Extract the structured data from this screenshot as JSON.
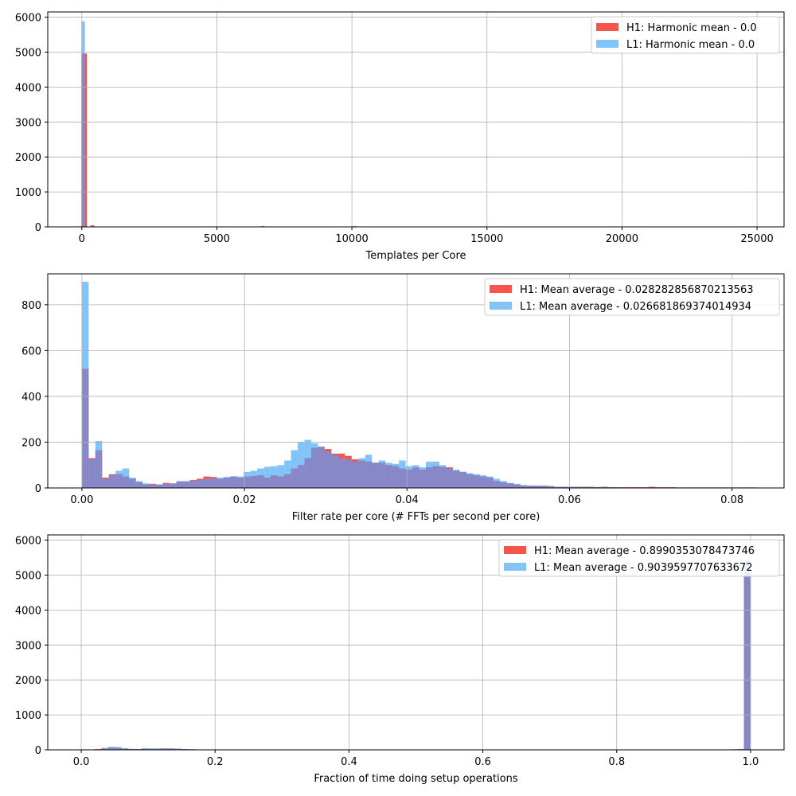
{
  "colors": {
    "h1": "#f44336",
    "l1": "#64b5f6",
    "overlap": "#8888c8",
    "grid": "#b0b0b0"
  },
  "chart_data": [
    {
      "type": "histogram",
      "xlabel": "Templates per Core",
      "xlim": [
        -1260,
        26000
      ],
      "ylim": [
        0,
        6150
      ],
      "xticks": [
        0,
        5000,
        10000,
        15000,
        20000,
        25000
      ],
      "xtick_labels": [
        "0",
        "5000",
        "10000",
        "15000",
        "20000",
        "25000"
      ],
      "yticks": [
        0,
        1000,
        2000,
        3000,
        4000,
        5000,
        6000
      ],
      "ytick_labels": [
        "0",
        "1000",
        "2000",
        "3000",
        "4000",
        "5000",
        "6000"
      ],
      "grid": true,
      "legend_position": "upper-right",
      "series": [
        {
          "name": "H1: Harmonic mean  - 0.0",
          "bars": [
            [
              50,
              4960
            ],
            [
              125,
              4960
            ],
            [
              400,
              50
            ],
            [
              6700,
              20
            ],
            [
              7000,
              10
            ],
            [
              7900,
              10
            ],
            [
              8300,
              8
            ],
            [
              9000,
              10
            ],
            [
              9600,
              8
            ],
            [
              10100,
              20
            ],
            [
              11000,
              10
            ]
          ],
          "bin_width": 130
        },
        {
          "name": "L1: Harmonic mean  - 0.0",
          "bars": [
            [
              50,
              5880
            ],
            [
              380,
              40
            ],
            [
              8700,
              8
            ],
            [
              9500,
              8
            ]
          ],
          "bin_width": 130
        }
      ]
    },
    {
      "type": "histogram",
      "xlabel": "Filter rate per core (# FFTs per second per core)",
      "xlim": [
        -0.0042,
        0.0864
      ],
      "ylim": [
        0,
        935
      ],
      "xticks": [
        0.0,
        0.02,
        0.04,
        0.06,
        0.08
      ],
      "xtick_labels": [
        "0.00",
        "0.02",
        "0.04",
        "0.06",
        "0.08"
      ],
      "yticks": [
        0,
        200,
        400,
        600,
        800
      ],
      "ytick_labels": [
        "0",
        "200",
        "400",
        "600",
        "800"
      ],
      "grid": true,
      "legend_position": "upper-right",
      "bin_width": 0.00083,
      "bin_start": 0.0,
      "series": [
        {
          "name": "H1: Mean average - 0.028282856870213563",
          "values": [
            520,
            130,
            165,
            45,
            60,
            60,
            50,
            40,
            25,
            15,
            18,
            15,
            22,
            20,
            28,
            28,
            35,
            40,
            50,
            48,
            40,
            45,
            48,
            45,
            50,
            52,
            55,
            45,
            55,
            50,
            60,
            85,
            100,
            130,
            175,
            180,
            170,
            150,
            150,
            140,
            125,
            120,
            115,
            110,
            110,
            100,
            95,
            85,
            80,
            90,
            80,
            90,
            95,
            92,
            90,
            75,
            70,
            60,
            55,
            50,
            45,
            30,
            25,
            20,
            15,
            12,
            10,
            10,
            10,
            8,
            5,
            5,
            5,
            5,
            5,
            5,
            3,
            5,
            3,
            3,
            3,
            3,
            3,
            3,
            5,
            3,
            3,
            3,
            2,
            2,
            2,
            2,
            2,
            2,
            2,
            2,
            2,
            2,
            2,
            2
          ],
          "color_key": "h1"
        },
        {
          "name": "L1: Mean average - 0.026681869374014934",
          "values": [
            900,
            125,
            205,
            40,
            55,
            75,
            85,
            45,
            30,
            20,
            15,
            15,
            18,
            18,
            30,
            30,
            32,
            35,
            40,
            42,
            45,
            48,
            52,
            50,
            70,
            75,
            85,
            92,
            95,
            100,
            120,
            165,
            200,
            210,
            195,
            180,
            160,
            145,
            130,
            125,
            115,
            130,
            145,
            110,
            120,
            110,
            105,
            120,
            95,
            100,
            90,
            115,
            115,
            100,
            85,
            80,
            70,
            65,
            60,
            55,
            50,
            40,
            30,
            22,
            18,
            12,
            10,
            10,
            8,
            8,
            5,
            5,
            5,
            5,
            3,
            3,
            3,
            3,
            3,
            3,
            2,
            2,
            2,
            2,
            2,
            2,
            2,
            2,
            2,
            2,
            2,
            2,
            2,
            2,
            2,
            2,
            2,
            2,
            2,
            2
          ],
          "color_key": "l1"
        }
      ]
    },
    {
      "type": "histogram",
      "xlabel": "Fraction of time doing setup operations",
      "xlim": [
        -0.05,
        1.05
      ],
      "ylim": [
        0,
        6150
      ],
      "xticks": [
        0.0,
        0.2,
        0.4,
        0.6,
        0.8,
        1.0
      ],
      "xtick_labels": [
        "0.0",
        "0.2",
        "0.4",
        "0.6",
        "0.8",
        "1.0"
      ],
      "yticks": [
        0,
        1000,
        2000,
        3000,
        4000,
        5000,
        6000
      ],
      "ytick_labels": [
        "0",
        "1000",
        "2000",
        "3000",
        "4000",
        "5000",
        "6000"
      ],
      "grid": true,
      "legend_position": "upper-right",
      "bin_width": 0.01,
      "series": [
        {
          "name": "H1: Mean average - 0.8990353078473746",
          "bars": [
            [
              0.005,
              10
            ],
            [
              0.025,
              20
            ],
            [
              0.035,
              50
            ],
            [
              0.045,
              60
            ],
            [
              0.055,
              60
            ],
            [
              0.065,
              40
            ],
            [
              0.075,
              25
            ],
            [
              0.085,
              20
            ],
            [
              0.095,
              35
            ],
            [
              0.105,
              30
            ],
            [
              0.115,
              35
            ],
            [
              0.125,
              40
            ],
            [
              0.135,
              40
            ],
            [
              0.145,
              30
            ],
            [
              0.155,
              20
            ],
            [
              0.165,
              15
            ],
            [
              0.175,
              10
            ],
            [
              0.185,
              10
            ],
            [
              0.195,
              8
            ],
            [
              0.205,
              5
            ],
            [
              0.215,
              5
            ],
            [
              0.225,
              5
            ],
            [
              0.235,
              10
            ],
            [
              0.245,
              5
            ],
            [
              0.275,
              10
            ],
            [
              0.945,
              8
            ],
            [
              0.955,
              8
            ],
            [
              0.965,
              10
            ],
            [
              0.975,
              15
            ],
            [
              0.985,
              20
            ],
            [
              0.995,
              5060
            ]
          ],
          "color_key": "h1"
        },
        {
          "name": "L1: Mean average - 0.9039597707633672",
          "bars": [
            [
              0.005,
              15
            ],
            [
              0.025,
              10
            ],
            [
              0.035,
              40
            ],
            [
              0.045,
              90
            ],
            [
              0.055,
              80
            ],
            [
              0.065,
              45
            ],
            [
              0.075,
              25
            ],
            [
              0.085,
              20
            ],
            [
              0.095,
              45
            ],
            [
              0.105,
              40
            ],
            [
              0.115,
              40
            ],
            [
              0.125,
              40
            ],
            [
              0.135,
              35
            ],
            [
              0.145,
              30
            ],
            [
              0.155,
              25
            ],
            [
              0.165,
              15
            ],
            [
              0.175,
              10
            ],
            [
              0.185,
              10
            ],
            [
              0.195,
              8
            ],
            [
              0.205,
              8
            ],
            [
              0.215,
              8
            ],
            [
              0.225,
              8
            ],
            [
              0.235,
              5
            ],
            [
              0.245,
              8
            ],
            [
              0.955,
              8
            ],
            [
              0.965,
              8
            ],
            [
              0.975,
              10
            ],
            [
              0.985,
              20
            ],
            [
              0.995,
              5400
            ]
          ],
          "color_key": "l1"
        }
      ]
    }
  ]
}
